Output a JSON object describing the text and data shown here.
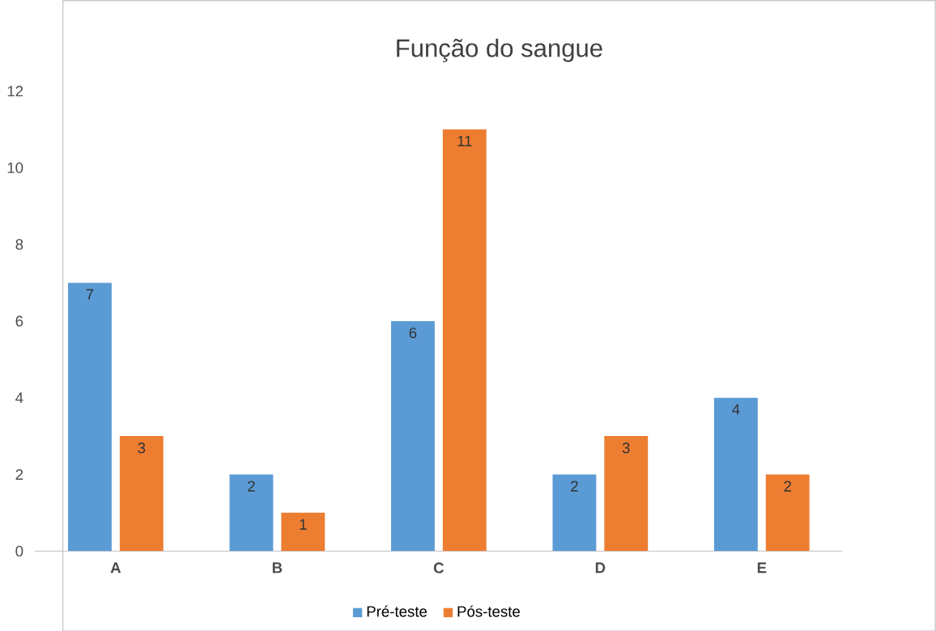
{
  "chart_data": {
    "type": "bar",
    "title": "Função do sangue",
    "categories": [
      "A",
      "B",
      "C",
      "D",
      "E"
    ],
    "series": [
      {
        "name": "Pré-teste",
        "color": "#5b9bd5",
        "values": [
          7,
          2,
          6,
          2,
          4
        ]
      },
      {
        "name": "Pós-teste",
        "color": "#ed7d31",
        "values": [
          3,
          1,
          11,
          3,
          2
        ]
      }
    ],
    "ylim": [
      0,
      12
    ],
    "yticks": [
      0,
      2,
      4,
      6,
      8,
      10,
      12
    ],
    "data_labels": true,
    "legend": "bottom",
    "grid": false
  }
}
